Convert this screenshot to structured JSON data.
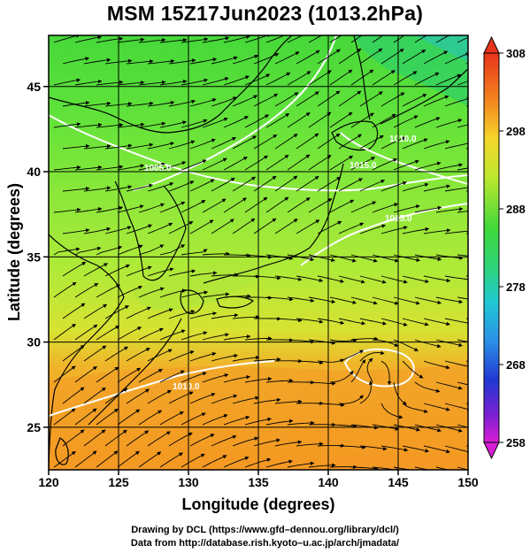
{
  "title": "MSM 15Z17Jun2023 (1013.2hPa)",
  "xaxis": {
    "label": "Longitude (degrees)",
    "range": [
      120,
      150
    ],
    "ticks": [
      "120",
      "125",
      "130",
      "135",
      "140",
      "145",
      "150"
    ]
  },
  "yaxis": {
    "label": "Latitude  (degrees)",
    "range": [
      22.5,
      48
    ],
    "ticks": [
      "25",
      "30",
      "35",
      "40",
      "45"
    ]
  },
  "colorbar": {
    "range": [
      258,
      308
    ],
    "ticks": [
      "308",
      "298",
      "288",
      "278",
      "268",
      "258"
    ]
  },
  "isobar_labels": [
    "1005.0",
    "1010.0",
    "1015.0",
    "1015.0",
    "1010.0"
  ],
  "credits": {
    "line1": "Drawing by DCL (https://www.gfd–dennou.org/library/dcl/)",
    "line2": "Data from http://database.rish.kyoto–u.ac.jp/arch/jmadata/"
  }
}
